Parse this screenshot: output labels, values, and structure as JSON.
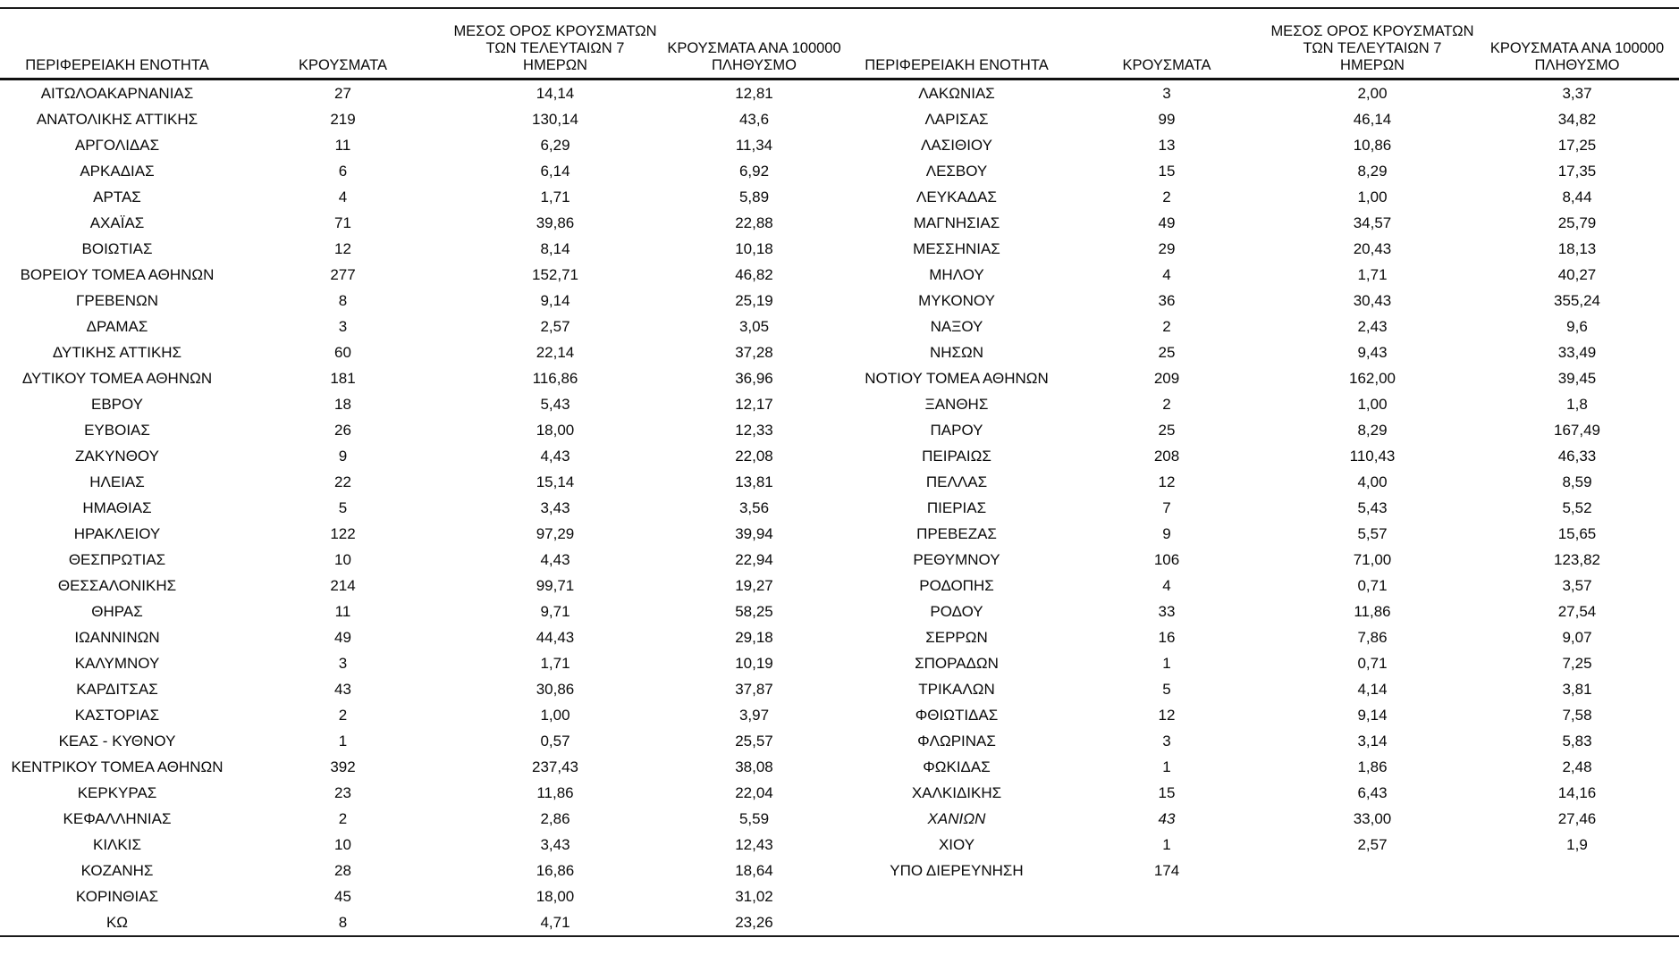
{
  "table": {
    "headers": {
      "region": "ΠΕΡΙΦΕΡΕΙΑΚΗ ΕΝΟΤΗΤΑ",
      "cases": "ΚΡΟΥΣΜΑΤΑ",
      "avg7_lines": [
        "ΜΕΣΟΣ ΟΡΟΣ ΚΡΟΥΣΜΑΤΩΝ",
        "ΤΩΝ ΤΕΛΕΥΤΑΙΩΝ 7",
        "ΗΜΕΡΩΝ"
      ],
      "per100k_lines": [
        "ΚΡΟΥΣΜΑΤΑ ΑΝΑ 100000",
        "ΠΛΗΘΥΣΜΟ"
      ]
    },
    "left_rows": [
      {
        "region": "ΑΙΤΩΛΟΑΚΑΡΝΑΝΙΑΣ",
        "cases": "27",
        "avg7": "14,14",
        "per100k": "12,81"
      },
      {
        "region": "ΑΝΑΤΟΛΙΚΗΣ ΑΤΤΙΚΗΣ",
        "cases": "219",
        "avg7": "130,14",
        "per100k": "43,6"
      },
      {
        "region": "ΑΡΓΟΛΙΔΑΣ",
        "cases": "11",
        "avg7": "6,29",
        "per100k": "11,34"
      },
      {
        "region": "ΑΡΚΑΔΙΑΣ",
        "cases": "6",
        "avg7": "6,14",
        "per100k": "6,92"
      },
      {
        "region": "ΑΡΤΑΣ",
        "cases": "4",
        "avg7": "1,71",
        "per100k": "5,89"
      },
      {
        "region": "ΑΧΑΪΑΣ",
        "cases": "71",
        "avg7": "39,86",
        "per100k": "22,88"
      },
      {
        "region": "ΒΟΙΩΤΙΑΣ",
        "cases": "12",
        "avg7": "8,14",
        "per100k": "10,18"
      },
      {
        "region": "ΒΟΡΕΙΟΥ ΤΟΜΕΑ ΑΘΗΝΩΝ",
        "cases": "277",
        "avg7": "152,71",
        "per100k": "46,82"
      },
      {
        "region": "ΓΡΕΒΕΝΩΝ",
        "cases": "8",
        "avg7": "9,14",
        "per100k": "25,19"
      },
      {
        "region": "ΔΡΑΜΑΣ",
        "cases": "3",
        "avg7": "2,57",
        "per100k": "3,05"
      },
      {
        "region": "ΔΥΤΙΚΗΣ ΑΤΤΙΚΗΣ",
        "cases": "60",
        "avg7": "22,14",
        "per100k": "37,28"
      },
      {
        "region": "ΔΥΤΙΚΟΥ ΤΟΜΕΑ ΑΘΗΝΩΝ",
        "cases": "181",
        "avg7": "116,86",
        "per100k": "36,96"
      },
      {
        "region": "ΕΒΡΟΥ",
        "cases": "18",
        "avg7": "5,43",
        "per100k": "12,17"
      },
      {
        "region": "ΕΥΒΟΙΑΣ",
        "cases": "26",
        "avg7": "18,00",
        "per100k": "12,33"
      },
      {
        "region": "ΖΑΚΥΝΘΟΥ",
        "cases": "9",
        "avg7": "4,43",
        "per100k": "22,08"
      },
      {
        "region": "ΗΛΕΙΑΣ",
        "cases": "22",
        "avg7": "15,14",
        "per100k": "13,81"
      },
      {
        "region": "ΗΜΑΘΙΑΣ",
        "cases": "5",
        "avg7": "3,43",
        "per100k": "3,56"
      },
      {
        "region": "ΗΡΑΚΛΕΙΟΥ",
        "cases": "122",
        "avg7": "97,29",
        "per100k": "39,94"
      },
      {
        "region": "ΘΕΣΠΡΩΤΙΑΣ",
        "cases": "10",
        "avg7": "4,43",
        "per100k": "22,94"
      },
      {
        "region": "ΘΕΣΣΑΛΟΝΙΚΗΣ",
        "cases": "214",
        "avg7": "99,71",
        "per100k": "19,27"
      },
      {
        "region": "ΘΗΡΑΣ",
        "cases": "11",
        "avg7": "9,71",
        "per100k": "58,25"
      },
      {
        "region": "ΙΩΑΝΝΙΝΩΝ",
        "cases": "49",
        "avg7": "44,43",
        "per100k": "29,18"
      },
      {
        "region": "ΚΑΛΥΜΝΟΥ",
        "cases": "3",
        "avg7": "1,71",
        "per100k": "10,19"
      },
      {
        "region": "ΚΑΡΔΙΤΣΑΣ",
        "cases": "43",
        "avg7": "30,86",
        "per100k": "37,87"
      },
      {
        "region": "ΚΑΣΤΟΡΙΑΣ",
        "cases": "2",
        "avg7": "1,00",
        "per100k": "3,97"
      },
      {
        "region": "ΚΕΑΣ - ΚΥΘΝΟΥ",
        "cases": "1",
        "avg7": "0,57",
        "per100k": "25,57"
      },
      {
        "region": "ΚΕΝΤΡΙΚΟΥ ΤΟΜΕΑ ΑΘΗΝΩΝ",
        "cases": "392",
        "avg7": "237,43",
        "per100k": "38,08"
      },
      {
        "region": "ΚΕΡΚΥΡΑΣ",
        "cases": "23",
        "avg7": "11,86",
        "per100k": "22,04"
      },
      {
        "region": "ΚΕΦΑΛΛΗΝΙΑΣ",
        "cases": "2",
        "avg7": "2,86",
        "per100k": "5,59"
      },
      {
        "region": "ΚΙΛΚΙΣ",
        "cases": "10",
        "avg7": "3,43",
        "per100k": "12,43"
      },
      {
        "region": "ΚΟΖΑΝΗΣ",
        "cases": "28",
        "avg7": "16,86",
        "per100k": "18,64"
      },
      {
        "region": "ΚΟΡΙΝΘΙΑΣ",
        "cases": "45",
        "avg7": "18,00",
        "per100k": "31,02"
      },
      {
        "region": "ΚΩ",
        "cases": "8",
        "avg7": "4,71",
        "per100k": "23,26"
      }
    ],
    "right_rows": [
      {
        "region": "ΛΑΚΩΝΙΑΣ",
        "cases": "3",
        "avg7": "2,00",
        "per100k": "3,37"
      },
      {
        "region": "ΛΑΡΙΣΑΣ",
        "cases": "99",
        "avg7": "46,14",
        "per100k": "34,82"
      },
      {
        "region": "ΛΑΣΙΘΙΟΥ",
        "cases": "13",
        "avg7": "10,86",
        "per100k": "17,25"
      },
      {
        "region": "ΛΕΣΒΟΥ",
        "cases": "15",
        "avg7": "8,29",
        "per100k": "17,35"
      },
      {
        "region": "ΛΕΥΚΑΔΑΣ",
        "cases": "2",
        "avg7": "1,00",
        "per100k": "8,44"
      },
      {
        "region": "ΜΑΓΝΗΣΙΑΣ",
        "cases": "49",
        "avg7": "34,57",
        "per100k": "25,79"
      },
      {
        "region": "ΜΕΣΣΗΝΙΑΣ",
        "cases": "29",
        "avg7": "20,43",
        "per100k": "18,13"
      },
      {
        "region": "ΜΗΛΟΥ",
        "cases": "4",
        "avg7": "1,71",
        "per100k": "40,27"
      },
      {
        "region": "ΜΥΚΟΝΟΥ",
        "cases": "36",
        "avg7": "30,43",
        "per100k": "355,24"
      },
      {
        "region": "ΝΑΞΟΥ",
        "cases": "2",
        "avg7": "2,43",
        "per100k": "9,6"
      },
      {
        "region": "ΝΗΣΩΝ",
        "cases": "25",
        "avg7": "9,43",
        "per100k": "33,49"
      },
      {
        "region": "ΝΟΤΙΟΥ ΤΟΜΕΑ ΑΘΗΝΩΝ",
        "cases": "209",
        "avg7": "162,00",
        "per100k": "39,45"
      },
      {
        "region": "ΞΑΝΘΗΣ",
        "cases": "2",
        "avg7": "1,00",
        "per100k": "1,8"
      },
      {
        "region": "ΠΑΡΟΥ",
        "cases": "25",
        "avg7": "8,29",
        "per100k": "167,49"
      },
      {
        "region": "ΠΕΙΡΑΙΩΣ",
        "cases": "208",
        "avg7": "110,43",
        "per100k": "46,33"
      },
      {
        "region": "ΠΕΛΛΑΣ",
        "cases": "12",
        "avg7": "4,00",
        "per100k": "8,59"
      },
      {
        "region": "ΠΙΕΡΙΑΣ",
        "cases": "7",
        "avg7": "5,43",
        "per100k": "5,52"
      },
      {
        "region": "ΠΡΕΒΕΖΑΣ",
        "cases": "9",
        "avg7": "5,57",
        "per100k": "15,65"
      },
      {
        "region": "ΡΕΘΥΜΝΟΥ",
        "cases": "106",
        "avg7": "71,00",
        "per100k": "123,82"
      },
      {
        "region": "ΡΟΔΟΠΗΣ",
        "cases": "4",
        "avg7": "0,71",
        "per100k": "3,57"
      },
      {
        "region": "ΡΟΔΟΥ",
        "cases": "33",
        "avg7": "11,86",
        "per100k": "27,54"
      },
      {
        "region": "ΣΕΡΡΩΝ",
        "cases": "16",
        "avg7": "7,86",
        "per100k": "9,07"
      },
      {
        "region": "ΣΠΟΡΑΔΩΝ",
        "cases": "1",
        "avg7": "0,71",
        "per100k": "7,25"
      },
      {
        "region": "ΤΡΙΚΑΛΩΝ",
        "cases": "5",
        "avg7": "4,14",
        "per100k": "3,81"
      },
      {
        "region": "ΦΘΙΩΤΙΔΑΣ",
        "cases": "12",
        "avg7": "9,14",
        "per100k": "7,58"
      },
      {
        "region": "ΦΛΩΡΙΝΑΣ",
        "cases": "3",
        "avg7": "3,14",
        "per100k": "5,83"
      },
      {
        "region": "ΦΩΚΙΔΑΣ",
        "cases": "1",
        "avg7": "1,86",
        "per100k": "2,48"
      },
      {
        "region": "ΧΑΛΚΙΔΙΚΗΣ",
        "cases": "15",
        "avg7": "6,43",
        "per100k": "14,16"
      },
      {
        "region": "ΧΑΝΙΩΝ",
        "cases": "43",
        "avg7": "33,00",
        "per100k": "27,46",
        "italic": true
      },
      {
        "region": "ΧΙΟΥ",
        "cases": "1",
        "avg7": "2,57",
        "per100k": "1,9"
      },
      {
        "region": "ΥΠΟ ΔΙΕΡΕΥΝΗΣΗ",
        "cases": "174",
        "avg7": "",
        "per100k": ""
      }
    ]
  }
}
